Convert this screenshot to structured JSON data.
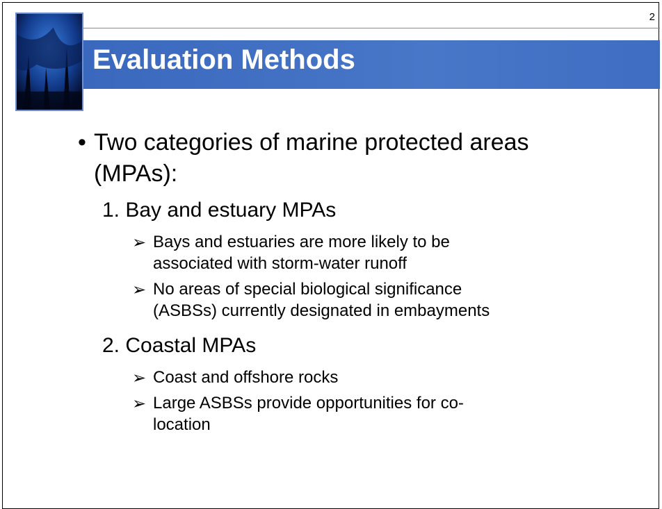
{
  "title": "Evaluation Methods",
  "page_number": "2",
  "bullet": {
    "lines": [
      "Two categories of marine protected areas",
      "(MPAs):"
    ],
    "items": [
      {
        "label": "1. Bay and estuary MPAs",
        "subitems": [
          {
            "lines": [
              "Bays and estuaries are more likely to be",
              "associated with storm-water runoff"
            ]
          },
          {
            "lines": [
              "No areas of special biological significance",
              "(ASBSs) currently designated in embayments"
            ]
          }
        ]
      },
      {
        "label": "2. Coastal MPAs",
        "subitems": [
          {
            "lines": [
              "Coast and offshore rocks"
            ]
          },
          {
            "lines": [
              "Large ASBSs provide opportunities for co-",
              "location"
            ]
          }
        ]
      }
    ]
  }
}
